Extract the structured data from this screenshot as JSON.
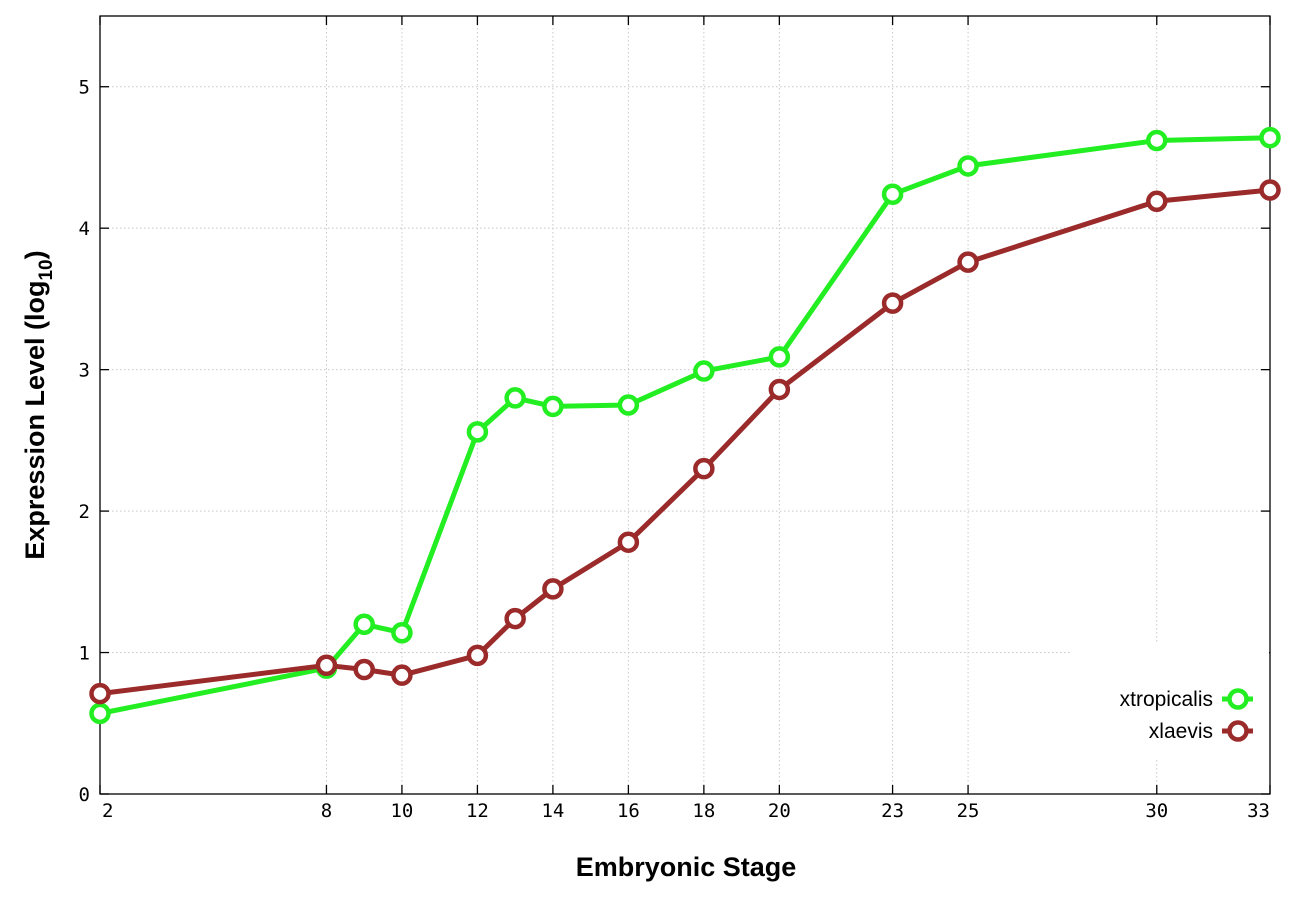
{
  "chart_data": {
    "type": "line",
    "title": "",
    "xlabel": "Embryonic Stage",
    "ylabel_main": "Expression Level (log",
    "ylabel_sub": "10",
    "ylabel_end": ")",
    "x_ticks": [
      2,
      8,
      10,
      12,
      14,
      16,
      18,
      20,
      23,
      25,
      30,
      33
    ],
    "y_ticks": [
      0,
      1,
      2,
      3,
      4,
      5
    ],
    "xlim": [
      2,
      33
    ],
    "ylim": [
      0,
      5.5
    ],
    "grid": true,
    "legend_position": "bottom-right",
    "x": [
      2,
      8,
      9,
      10,
      12,
      13,
      14,
      16,
      18,
      20,
      23,
      25,
      30,
      33
    ],
    "series": [
      {
        "name": "xtropicalis",
        "color": "#22ee22",
        "values": [
          0.57,
          0.89,
          1.2,
          1.14,
          2.56,
          2.8,
          2.74,
          2.75,
          2.99,
          3.09,
          4.24,
          4.44,
          4.62,
          4.64
        ]
      },
      {
        "name": "xlaevis",
        "color": "#9b2a2a",
        "values": [
          0.71,
          0.91,
          0.88,
          0.84,
          0.98,
          1.24,
          1.45,
          1.78,
          2.3,
          2.86,
          3.47,
          3.76,
          4.19,
          4.27
        ]
      }
    ]
  }
}
